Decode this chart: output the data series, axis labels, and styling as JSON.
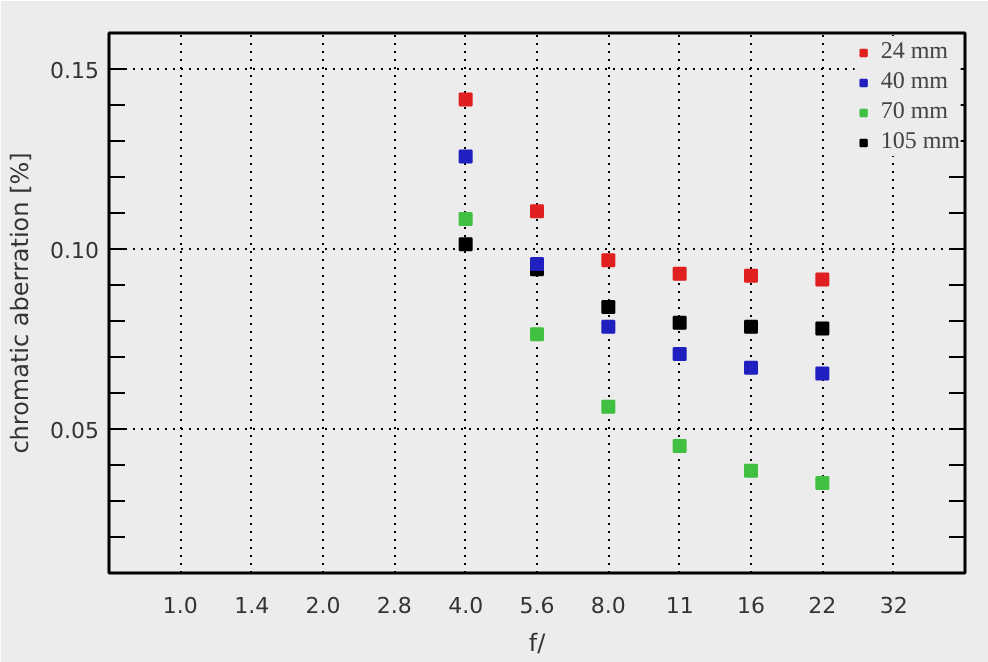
{
  "chart_data": {
    "type": "scatter",
    "xlabel": "f/",
    "ylabel": "chromatic aberration [%]",
    "categories": [
      "1.0",
      "1.4",
      "2.0",
      "2.8",
      "4.0",
      "5.6",
      "8.0",
      "11",
      "16",
      "22",
      "32"
    ],
    "series": [
      {
        "name": "24 mm",
        "color": "#e02020",
        "values": [
          null,
          null,
          null,
          null,
          0.1415,
          0.1105,
          0.0969,
          0.0931,
          0.0926,
          0.0915,
          null
        ]
      },
      {
        "name": "40 mm",
        "color": "#2020c0",
        "values": [
          null,
          null,
          null,
          null,
          0.1257,
          0.0958,
          0.0784,
          0.0708,
          0.067,
          0.0654,
          null
        ]
      },
      {
        "name": "70 mm",
        "color": "#40c040",
        "values": [
          null,
          null,
          null,
          null,
          0.1083,
          0.0763,
          0.0562,
          0.0453,
          0.0384,
          0.035,
          null
        ]
      },
      {
        "name": "105 mm",
        "color": "#000000",
        "values": [
          null,
          null,
          null,
          null,
          0.1013,
          0.0944,
          0.0839,
          0.0795,
          0.0784,
          0.0779,
          null
        ]
      }
    ],
    "ylim": [
      0.01,
      0.16
    ],
    "yticks": [
      {
        "value": 0.02,
        "label": null
      },
      {
        "value": 0.03,
        "label": null
      },
      {
        "value": 0.04,
        "label": null
      },
      {
        "value": 0.05,
        "label": "0.05"
      },
      {
        "value": 0.06,
        "label": null
      },
      {
        "value": 0.07,
        "label": null
      },
      {
        "value": 0.08,
        "label": null
      },
      {
        "value": 0.09,
        "label": null
      },
      {
        "value": 0.1,
        "label": "0.10"
      },
      {
        "value": 0.11,
        "label": null
      },
      {
        "value": 0.12,
        "label": null
      },
      {
        "value": 0.13,
        "label": null
      },
      {
        "value": 0.14,
        "label": null
      },
      {
        "value": 0.15,
        "label": "0.15"
      }
    ],
    "grid": true,
    "legend": "top right",
    "marker": "square"
  }
}
